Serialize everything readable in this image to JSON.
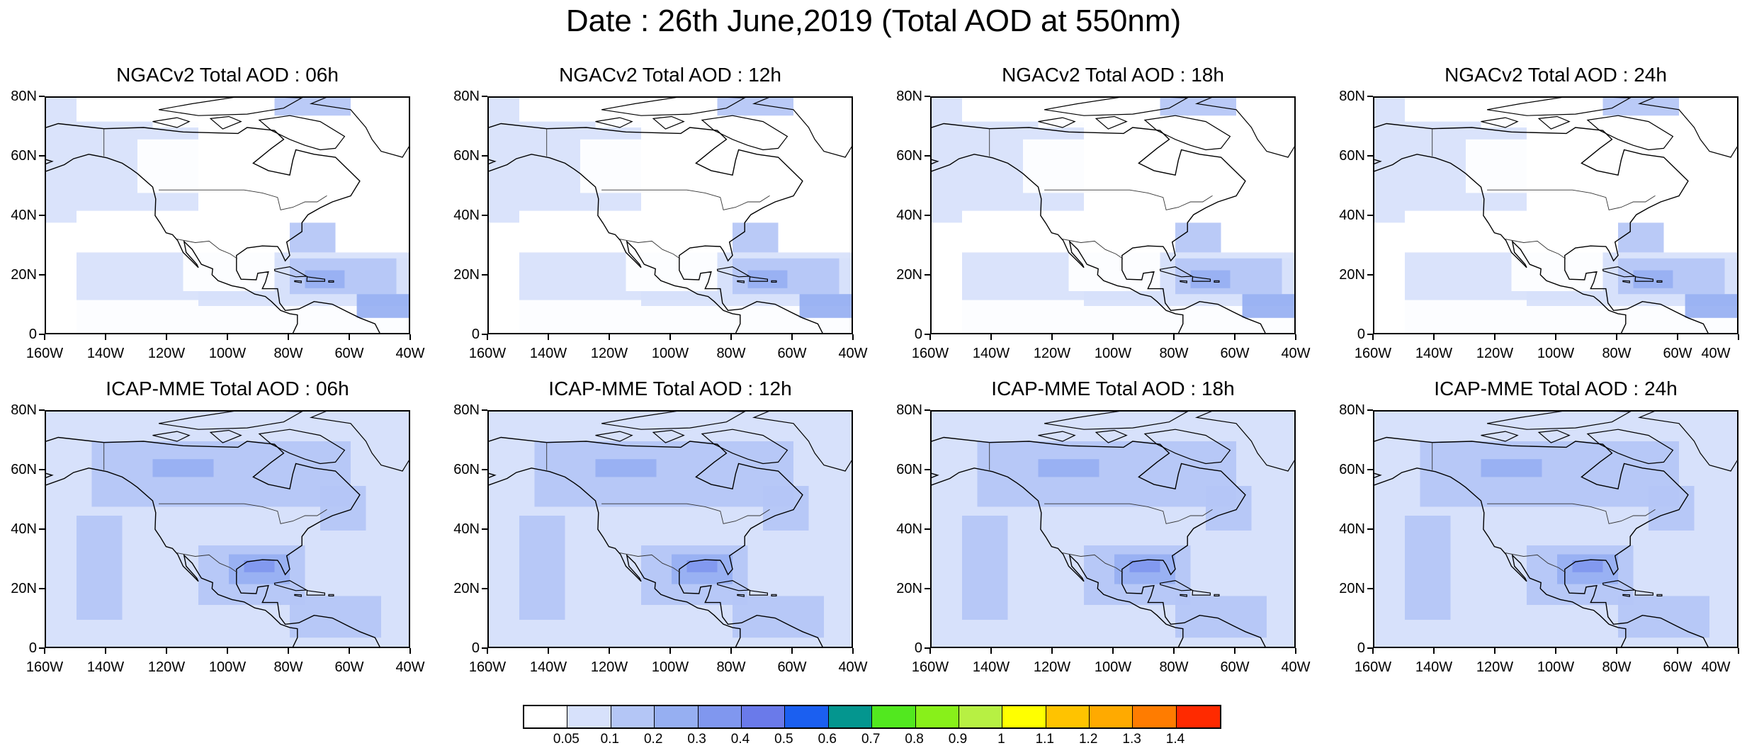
{
  "title": "Date : 26th June,2019 (Total AOD at 550nm)",
  "panels": [
    {
      "title": "NGACv2 Total AOD : 06h",
      "model": "ngac"
    },
    {
      "title": "NGACv2 Total AOD : 12h",
      "model": "ngac"
    },
    {
      "title": "NGACv2 Total AOD : 18h",
      "model": "ngac"
    },
    {
      "title": "NGACv2 Total AOD : 24h",
      "model": "ngac"
    },
    {
      "title": "ICAP-MME Total AOD : 06h",
      "model": "icap"
    },
    {
      "title": "ICAP-MME Total AOD : 12h",
      "model": "icap"
    },
    {
      "title": "ICAP-MME Total AOD : 18h",
      "model": "icap"
    },
    {
      "title": "ICAP-MME Total AOD : 24h",
      "model": "icap"
    }
  ],
  "axes": {
    "y_ticks": [
      "80N",
      "60N",
      "40N",
      "20N",
      "0"
    ],
    "x_ticks": [
      "160W",
      "140W",
      "120W",
      "100W",
      "80W",
      "60W",
      "40W"
    ],
    "lat_range": [
      0,
      80
    ],
    "lon_range": [
      -160,
      -40
    ]
  },
  "colorbar": {
    "colors": [
      "#ffffff",
      "#d7e1fb",
      "#b4c6f6",
      "#96aff2",
      "#8097ef",
      "#6a7aea",
      "#1b5ff0",
      "#04968f",
      "#52e81f",
      "#88f01a",
      "#b7f043",
      "#ffff00",
      "#ffc300",
      "#ffaa00",
      "#ff7c00",
      "#ff2a00"
    ],
    "labels": [
      "0.05",
      "0.1",
      "0.2",
      "0.3",
      "0.4",
      "0.5",
      "0.6",
      "0.7",
      "0.8",
      "0.9",
      "1",
      "1.1",
      "1.2",
      "1.3",
      "1.4"
    ]
  }
}
